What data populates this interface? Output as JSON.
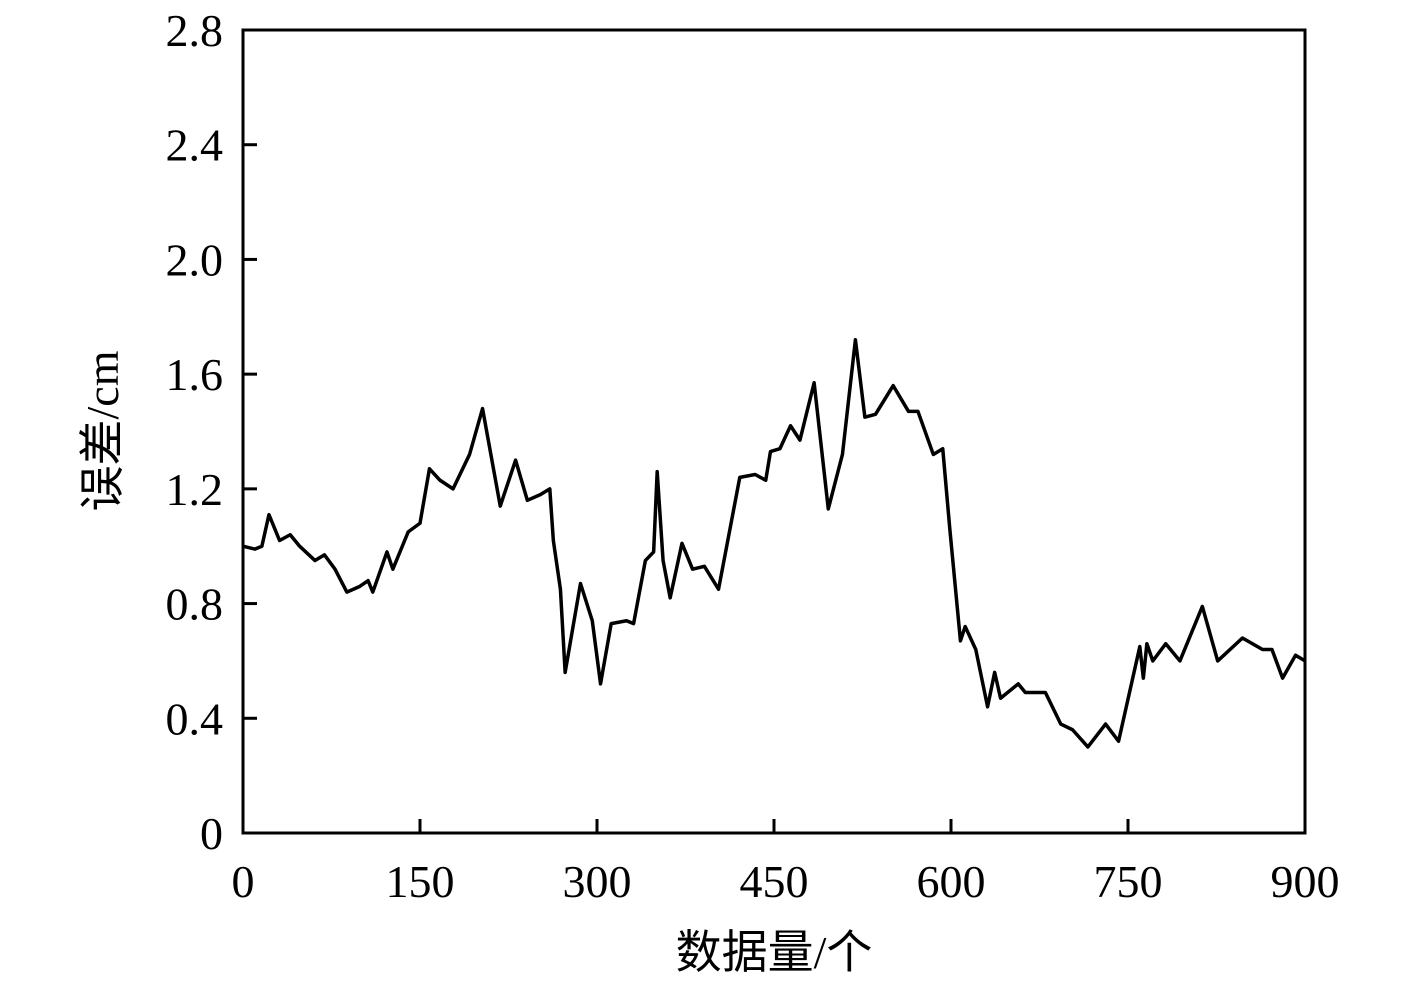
{
  "chart_data": {
    "type": "line",
    "x_label": "数据量/个",
    "y_label": "误差/cm",
    "x": [
      0,
      10,
      16,
      22,
      31,
      40,
      48,
      61,
      69,
      78,
      88,
      99,
      106,
      110,
      122,
      127,
      140,
      150,
      158,
      167,
      178,
      192,
      203,
      218,
      231,
      241,
      252,
      260,
      263,
      269,
      273,
      286,
      296,
      303,
      312,
      325,
      331,
      341,
      348,
      351,
      356,
      362,
      372,
      381,
      391,
      403,
      421,
      434,
      443,
      447,
      455,
      464,
      472,
      484,
      496,
      508,
      519,
      527,
      536,
      551,
      564,
      572,
      585,
      593,
      599,
      608,
      612,
      621,
      631,
      637,
      642,
      657,
      663,
      680,
      693,
      703,
      716,
      731,
      742,
      760,
      763,
      766,
      771,
      782,
      794,
      813,
      826,
      847,
      864,
      872,
      881,
      892,
      900
    ],
    "series": [
      {
        "color": "#000000",
        "values": [
          1.0,
          0.99,
          1.0,
          1.11,
          1.02,
          1.04,
          1.0,
          0.95,
          0.97,
          0.92,
          0.84,
          0.86,
          0.88,
          0.84,
          0.98,
          0.92,
          1.05,
          1.08,
          1.27,
          1.23,
          1.2,
          1.32,
          1.48,
          1.14,
          1.3,
          1.16,
          1.18,
          1.2,
          1.02,
          0.85,
          0.56,
          0.87,
          0.74,
          0.52,
          0.73,
          0.74,
          0.73,
          0.95,
          0.98,
          1.26,
          0.95,
          0.82,
          1.01,
          0.92,
          0.93,
          0.85,
          1.24,
          1.25,
          1.23,
          1.33,
          1.34,
          1.42,
          1.37,
          1.57,
          1.13,
          1.32,
          1.72,
          1.45,
          1.46,
          1.56,
          1.47,
          1.47,
          1.32,
          1.34,
          1.06,
          0.67,
          0.72,
          0.64,
          0.44,
          0.56,
          0.47,
          0.52,
          0.49,
          0.49,
          0.38,
          0.36,
          0.3,
          0.38,
          0.32,
          0.65,
          0.54,
          0.66,
          0.6,
          0.66,
          0.6,
          0.79,
          0.6,
          0.68,
          0.64,
          0.64,
          0.54,
          0.62,
          0.6
        ]
      }
    ],
    "xlim": [
      0,
      900
    ],
    "xticks": [
      0,
      150,
      300,
      450,
      600,
      750,
      900
    ],
    "ylim": [
      0,
      2.8
    ],
    "yticks": [
      0,
      0.4,
      0.8,
      1.2,
      1.6,
      {
        "value": 2,
        "label": "2.0"
      },
      2.4,
      2.8
    ]
  }
}
